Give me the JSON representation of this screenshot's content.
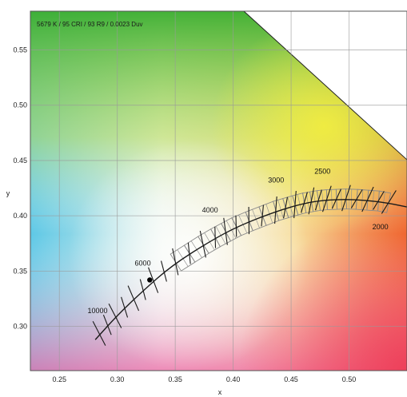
{
  "chart_data": {
    "type": "scatter",
    "annotation": "5679 K / 95 CRI / 93 R9 / 0.0023 Duv",
    "xlabel": "x",
    "ylabel": "y",
    "xlim": [
      0.225,
      0.55
    ],
    "ylim": [
      0.26,
      0.585
    ],
    "x_ticks": [
      0.25,
      0.3,
      0.35,
      0.4,
      0.45,
      0.5
    ],
    "y_ticks": [
      0.3,
      0.35,
      0.4,
      0.45,
      0.5,
      0.55
    ],
    "x_tick_labels": [
      "0.25",
      "0.30",
      "0.35",
      "0.40",
      "0.45",
      "0.50"
    ],
    "y_tick_labels": [
      "0.30",
      "0.35",
      "0.40",
      "0.45",
      "0.50",
      "0.55"
    ],
    "grid": true,
    "planckian_locus": {
      "x": [
        0.281,
        0.3,
        0.322,
        0.347,
        0.38,
        0.405,
        0.437,
        0.46,
        0.477,
        0.5,
        0.526,
        0.55
      ],
      "y": [
        0.288,
        0.31,
        0.332,
        0.355,
        0.377,
        0.391,
        0.404,
        0.411,
        0.414,
        0.415,
        0.413,
        0.408
      ]
    },
    "cct_labels": [
      {
        "text": "10000",
        "x": 0.283,
        "y": 0.312
      },
      {
        "text": "6000",
        "x": 0.322,
        "y": 0.355
      },
      {
        "text": "4000",
        "x": 0.38,
        "y": 0.403
      },
      {
        "text": "3000",
        "x": 0.437,
        "y": 0.43
      },
      {
        "text": "2500",
        "x": 0.477,
        "y": 0.438
      },
      {
        "text": "2000",
        "x": 0.527,
        "y": 0.388
      }
    ],
    "measured_point": {
      "x": 0.328,
      "y": 0.342
    }
  }
}
